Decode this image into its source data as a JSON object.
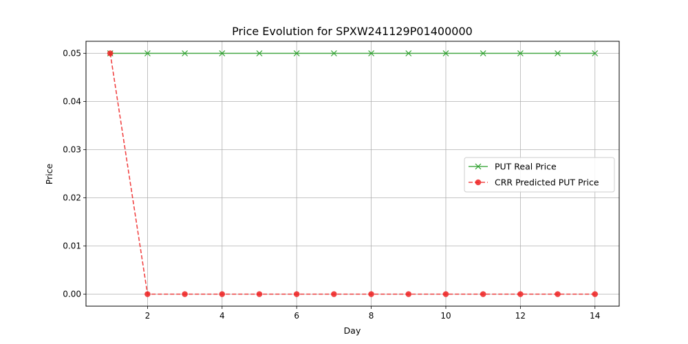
{
  "chart_data": {
    "type": "line",
    "title": "Price Evolution for SPXW241129P01400000",
    "xlabel": "Day",
    "ylabel": "Price",
    "x": [
      1,
      2,
      3,
      4,
      5,
      6,
      7,
      8,
      9,
      10,
      11,
      12,
      13,
      14
    ],
    "xlim": [
      0.35,
      14.65
    ],
    "ylim": [
      -0.0025,
      0.0525
    ],
    "xticks": [
      2,
      4,
      6,
      8,
      10,
      12,
      14
    ],
    "yticks": [
      "0.00",
      "0.01",
      "0.02",
      "0.03",
      "0.04",
      "0.05"
    ],
    "grid": true,
    "legend_position": "center-right",
    "series": [
      {
        "name": "PUT Real Price",
        "color": "#2ca02c",
        "line_style": "solid",
        "marker": "x",
        "values": [
          0.05,
          0.05,
          0.05,
          0.05,
          0.05,
          0.05,
          0.05,
          0.05,
          0.05,
          0.05,
          0.05,
          0.05,
          0.05,
          0.05
        ]
      },
      {
        "name": "CRR Predicted PUT Price",
        "color": "#ee2222",
        "line_style": "dashed",
        "marker": "circle",
        "values": [
          0.05,
          0.0,
          0.0,
          0.0,
          0.0,
          0.0,
          0.0,
          0.0,
          0.0,
          0.0,
          0.0,
          0.0,
          0.0,
          0.0
        ]
      }
    ]
  }
}
